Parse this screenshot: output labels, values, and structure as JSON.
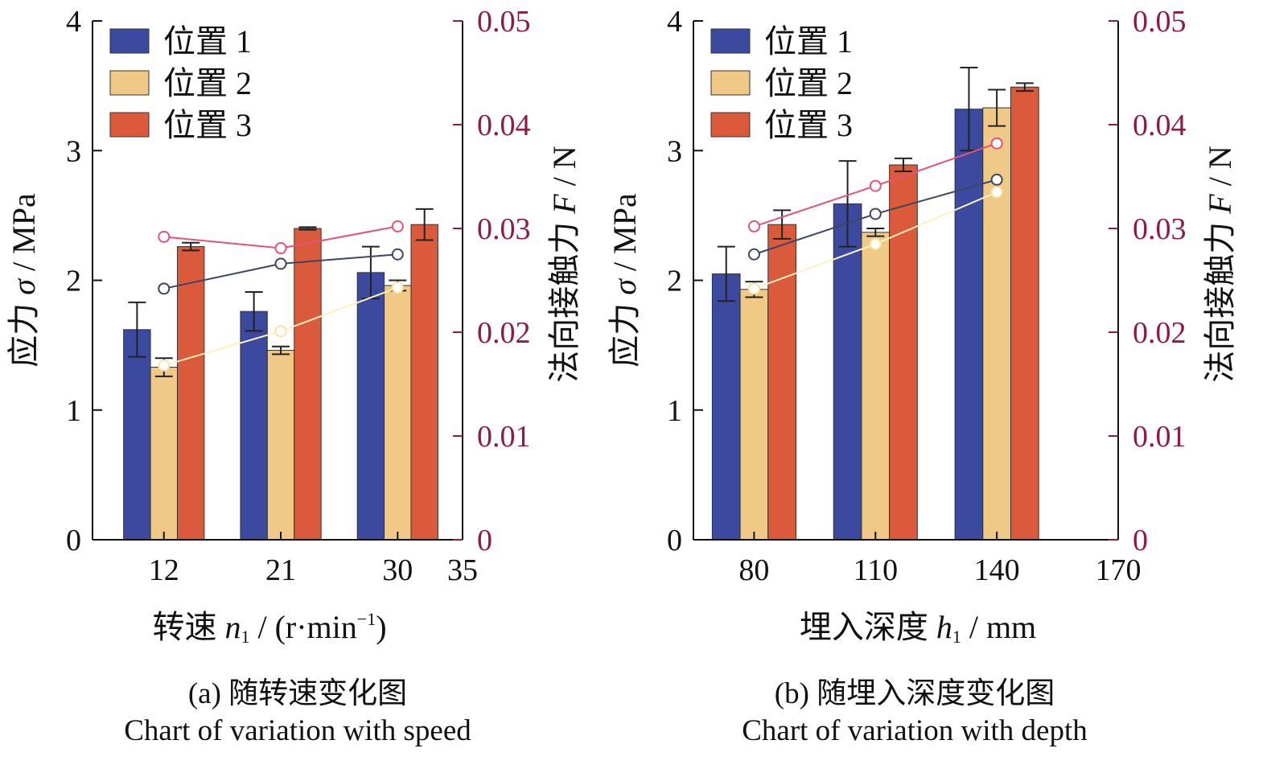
{
  "colors": {
    "pos1_bar": "#3b4a9e",
    "pos2_bar": "#f0c987",
    "pos3_bar": "#dc5a3c",
    "pos1_line": "#3e4560",
    "pos2_line": "#fdf2c0",
    "pos3_line": "#e5527a",
    "right_axis": "#8e1b46",
    "axis": "#111111"
  },
  "chart_data": [
    {
      "id": "a",
      "type": "bar",
      "caption_cn": "(a) 随转速变化图",
      "caption_en": "Chart of variation with speed",
      "xlabel_main": "转速",
      "xlabel_var": "n",
      "xlabel_sub": "1",
      "xlabel_unit": " / (r·min",
      "xlabel_sup": "−1",
      "xlabel_close": ")",
      "ylabel_left": "应力",
      "ylabel_left_var": "σ",
      "ylabel_left_unit": " / MPa",
      "ylabel_right": "法向接触力",
      "ylabel_right_var": "F",
      "ylabel_right_unit": " / N",
      "x_ticks": [
        "12",
        "21",
        "30",
        "35"
      ],
      "x_range": [
        6.5,
        35
      ],
      "x_tick_values": [
        12,
        21,
        30,
        35
      ],
      "categories_x": [
        12,
        21,
        30
      ],
      "y_left_ticks": [
        "0",
        "1",
        "2",
        "3",
        "4"
      ],
      "y_left_range": [
        0,
        4
      ],
      "y_right_ticks": [
        "0",
        "0.01",
        "0.02",
        "0.03",
        "0.04",
        "0.05"
      ],
      "y_right_range": [
        0,
        0.05
      ],
      "legend": [
        "位置 1",
        "位置 2",
        "位置 3"
      ],
      "bar_series": [
        {
          "name": "位置 1",
          "values": [
            1.62,
            1.76,
            2.06
          ],
          "errors": [
            0.21,
            0.15,
            0.2
          ]
        },
        {
          "name": "位置 2",
          "values": [
            1.33,
            1.46,
            1.96
          ],
          "errors": [
            0.07,
            0.03,
            0.04
          ]
        },
        {
          "name": "位置 3",
          "values": [
            2.26,
            2.4,
            2.43
          ],
          "errors": [
            0.03,
            0.01,
            0.12
          ]
        }
      ],
      "line_series": [
        {
          "name": "位置 1",
          "x": [
            12,
            21,
            30
          ],
          "values": [
            0.0242,
            0.0266,
            0.0275
          ]
        },
        {
          "name": "位置 2",
          "x": [
            12,
            21,
            30
          ],
          "values": [
            0.0168,
            0.0201,
            0.0243
          ]
        },
        {
          "name": "位置 3",
          "x": [
            12,
            21,
            30
          ],
          "values": [
            0.0292,
            0.0281,
            0.0302
          ]
        }
      ]
    },
    {
      "id": "b",
      "type": "bar",
      "caption_cn": "(b) 随埋入深度变化图",
      "caption_en": "Chart of variation with depth",
      "xlabel_main": "埋入深度",
      "xlabel_var": "h",
      "xlabel_sub": "1",
      "xlabel_unit": " / mm",
      "xlabel_sup": "",
      "xlabel_close": "",
      "ylabel_left": "应力",
      "ylabel_left_var": "σ",
      "ylabel_left_unit": " / MPa",
      "ylabel_right": "法向接触力",
      "ylabel_right_var": "F",
      "ylabel_right_unit": " / N",
      "x_ticks": [
        "80",
        "110",
        "140",
        "170"
      ],
      "x_range": [
        65,
        170
      ],
      "x_tick_values": [
        80,
        110,
        140,
        170
      ],
      "categories_x": [
        80,
        110,
        140
      ],
      "y_left_ticks": [
        "0",
        "1",
        "2",
        "3",
        "4"
      ],
      "y_left_range": [
        0,
        4
      ],
      "y_right_ticks": [
        "0",
        "0.01",
        "0.02",
        "0.03",
        "0.04",
        "0.05"
      ],
      "y_right_range": [
        0,
        0.05
      ],
      "legend": [
        "位置 1",
        "位置 2",
        "位置 3"
      ],
      "bar_series": [
        {
          "name": "位置 1",
          "values": [
            2.05,
            2.59,
            3.32
          ],
          "errors": [
            0.21,
            0.33,
            0.32
          ]
        },
        {
          "name": "位置 2",
          "values": [
            1.93,
            2.37,
            3.33
          ],
          "errors": [
            0.06,
            0.03,
            0.14
          ]
        },
        {
          "name": "位置 3",
          "values": [
            2.43,
            2.89,
            3.49
          ],
          "errors": [
            0.11,
            0.05,
            0.03
          ]
        }
      ],
      "line_series": [
        {
          "name": "位置 1",
          "x": [
            80,
            110,
            140
          ],
          "values": [
            0.0275,
            0.0314,
            0.0347
          ]
        },
        {
          "name": "位置 2",
          "x": [
            80,
            110,
            140
          ],
          "values": [
            0.0242,
            0.0285,
            0.0335
          ]
        },
        {
          "name": "位置 3",
          "x": [
            80,
            110,
            140
          ],
          "values": [
            0.0302,
            0.0341,
            0.0382
          ]
        }
      ]
    }
  ]
}
